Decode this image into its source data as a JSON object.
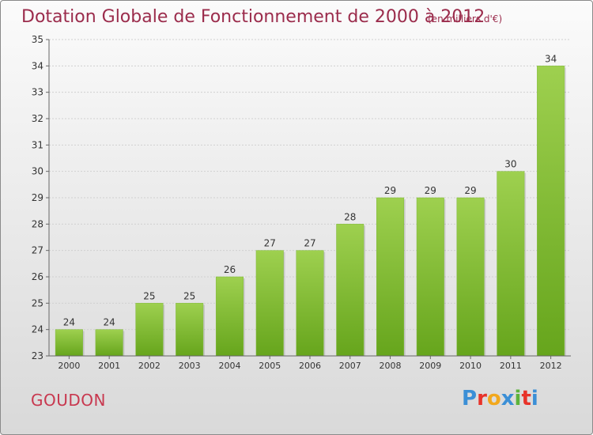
{
  "header": {
    "title": "Dotation Globale de Fonctionnement de 2000 à 2012",
    "unit": "(en milliers d'€)"
  },
  "footer": {
    "commune": "GOUDON",
    "logo_letters": [
      "P",
      "r",
      "o",
      "x",
      "i",
      "t",
      "i"
    ],
    "logo_colors": [
      "#3b8fd6",
      "#e8332a",
      "#f2a81d",
      "#3b8fd6",
      "#5db33b",
      "#e8332a",
      "#3b8fd6"
    ]
  },
  "chart_data": {
    "type": "bar",
    "categories": [
      "2000",
      "2001",
      "2002",
      "2003",
      "2004",
      "2005",
      "2006",
      "2007",
      "2008",
      "2009",
      "2010",
      "2011",
      "2012"
    ],
    "values": [
      24,
      24,
      25,
      25,
      26,
      27,
      27,
      28,
      29,
      29,
      29,
      30,
      34
    ],
    "title": "Dotation Globale de Fonctionnement de 2000 à 2012",
    "xlabel": "",
    "ylabel": "",
    "ylim": [
      23,
      35
    ],
    "yticks": [
      23,
      24,
      25,
      26,
      27,
      28,
      29,
      30,
      31,
      32,
      33,
      34,
      35
    ],
    "grid": true,
    "bar_color": "#8cc63f",
    "data_labels": true
  }
}
